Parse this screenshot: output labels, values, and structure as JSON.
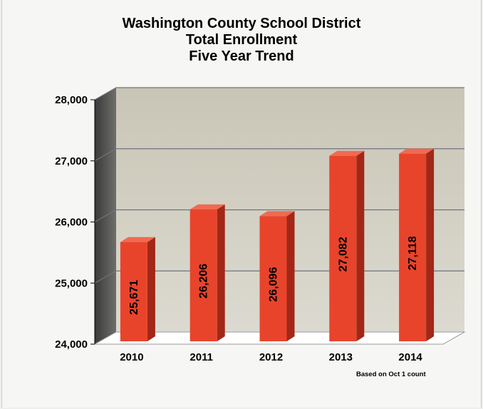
{
  "chart_data": {
    "type": "bar",
    "title_lines": [
      "Washington County School District",
      "Total Enrollment",
      "Five Year Trend"
    ],
    "categories": [
      "2010",
      "2011",
      "2012",
      "2013",
      "2014"
    ],
    "values": [
      25671,
      26206,
      26096,
      27082,
      27118
    ],
    "data_labels": [
      "25,671",
      "26,206",
      "26,096",
      "27,082",
      "27,118"
    ],
    "y_ticks": [
      24000,
      25000,
      26000,
      27000,
      28000
    ],
    "y_tick_labels": [
      "24,000",
      "25,000",
      "26,000",
      "27,000",
      "28,000"
    ],
    "ylim": [
      24000,
      28000
    ],
    "grid": true,
    "bar_color": "#e8442c",
    "note": "Based on Oct 1 count"
  }
}
